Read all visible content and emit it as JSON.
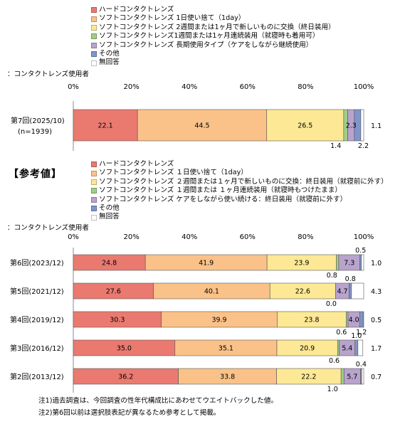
{
  "colors": {
    "hard": "#ea7a70",
    "oneday": "#fac289",
    "twoweek": "#fde995",
    "contin": "#9fcf85",
    "long": "#b9a3cd",
    "other": "#7f96cc",
    "none": "#ffffff"
  },
  "chart_data": [
    {
      "type": "bar",
      "orientation": "horizontal",
      "stacked": true,
      "axis_caption": "：コンタクトレンズ使用者",
      "xlim": [
        0,
        100
      ],
      "xticks": [
        "0%",
        "20%",
        "40%",
        "60%",
        "80%",
        "100%"
      ],
      "legend": [
        "ハードコンタクトレンズ",
        "ソフトコンタクトレンズ 1日使い捨て（1day）",
        "ソフトコンタクトレンズ 2週間または1ヶ月で新しいものに交換（終日装用）",
        "ソフトコンタクトレンズ1週間または1ヶ月連続装用（就寝時も着用可）",
        "ソフトコンタクトレンズ 長期使用タイプ（ケアをしながら継続使用）",
        "その他",
        "無回答"
      ],
      "categories": [
        {
          "label": "第7回(2025/10)",
          "sublabel": "(n=1939)"
        }
      ],
      "series": [
        {
          "name": "ハードコンタクトレンズ",
          "values": [
            22.1
          ]
        },
        {
          "name": "ソフトコンタクトレンズ 1日使い捨て（1day）",
          "values": [
            44.5
          ]
        },
        {
          "name": "ソフトコンタクトレンズ 2週間または1ヶ月で新しいものに交換（終日装用）",
          "values": [
            26.5
          ]
        },
        {
          "name": "ソフトコンタクトレンズ1週間または1ヶ月連続装用（就寝時も着用可）",
          "values": [
            1.4
          ]
        },
        {
          "name": "ソフトコンタクトレンズ 長期使用タイプ（ケアをしながら継続使用）",
          "values": [
            2.3
          ]
        },
        {
          "name": "その他",
          "values": [
            2.2
          ]
        },
        {
          "name": "無回答",
          "values": [
            1.1
          ]
        }
      ]
    },
    {
      "type": "bar",
      "orientation": "horizontal",
      "stacked": true,
      "title": "【参考値】",
      "axis_caption": "：コンタクトレンズ使用者",
      "xlim": [
        0,
        100
      ],
      "xticks": [
        "0%",
        "20%",
        "40%",
        "60%",
        "80%",
        "100%"
      ],
      "legend": [
        "ハードコンタクトレンズ",
        "ソフトコンタクトレンズ １日使い捨て（1day）",
        "ソフトコンタクトレンズ ２週間または１ヶ月で新しいものに交換：終日装用（就寝前に外す）",
        "ソフトコンタクトレンズ １週間または １ヶ月連続装用（就寝時もつけたまま）",
        "ソフトコンタクトレンズ ケアをしながら使い続ける：終日装用（就寝前に外す）",
        "その他",
        "無回答"
      ],
      "categories": [
        {
          "label": "第6回(2023/12)"
        },
        {
          "label": "第5回(2021/12)"
        },
        {
          "label": "第4回(2019/12)"
        },
        {
          "label": "第3回(2016/12)"
        },
        {
          "label": "第2回(2013/12)"
        }
      ],
      "series": [
        {
          "name": "ハードコンタクトレンズ",
          "values": [
            24.8,
            27.6,
            30.3,
            35.0,
            36.2
          ]
        },
        {
          "name": "ソフトコンタクトレンズ １日使い捨て（1day）",
          "values": [
            41.9,
            40.1,
            39.9,
            35.1,
            33.8
          ]
        },
        {
          "name": "ソフトコンタクトレンズ ２週間または１ヶ月で新しいものに交換：終日装用（就寝前に外す）",
          "values": [
            23.9,
            22.6,
            23.8,
            20.9,
            22.2
          ]
        },
        {
          "name": "ソフトコンタクトレンズ １週間または １ヶ月連続装用（就寝時もつけたまま）",
          "values": [
            0.8,
            0.0,
            0.6,
            0.6,
            1.0
          ]
        },
        {
          "name": "ソフトコンタクトレンズ ケアをしながら使い続ける：終日装用（就寝前に外す）",
          "values": [
            7.3,
            4.7,
            4.0,
            5.4,
            5.7
          ]
        },
        {
          "name": "その他",
          "values": [
            0.5,
            0.8,
            1.2,
            1.0,
            0.4
          ]
        },
        {
          "name": "無回答",
          "values": [
            1.0,
            4.3,
            0.5,
            1.7,
            0.7
          ]
        }
      ]
    }
  ],
  "notes": [
    "注1)過去調査は、今回調査の性年代構成比にあわせてウエイトバックした値。",
    "注2)第6回以前は選択肢表記が異なるため参考として掲載。"
  ]
}
